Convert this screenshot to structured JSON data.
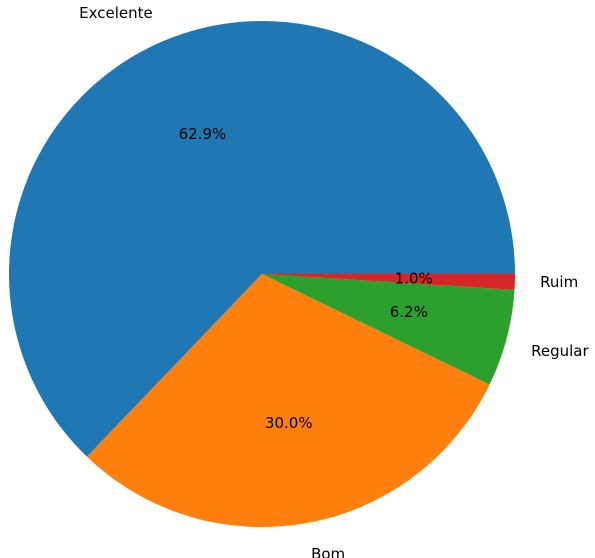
{
  "chart_data": {
    "type": "pie",
    "title": "",
    "start_angle_deg": 0,
    "direction": "counterclockwise",
    "slices": [
      {
        "label": "Excelente",
        "value": 62.9,
        "pct_label": "62.9%",
        "color": "#1f77b4"
      },
      {
        "label": "Bom",
        "value": 30.0,
        "pct_label": "30.0%",
        "color": "#ff7f0e"
      },
      {
        "label": "Regular",
        "value": 6.2,
        "pct_label": "6.2%",
        "color": "#2ca02c"
      },
      {
        "label": "Ruim",
        "value": 1.0,
        "pct_label": "1.0%",
        "color": "#d62728"
      }
    ]
  }
}
